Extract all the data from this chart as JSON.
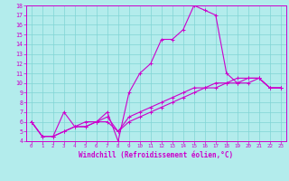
{
  "title": "",
  "xlabel": "Windchill (Refroidissement éolien,°C)",
  "ylabel": "",
  "xlim": [
    -0.5,
    23.5
  ],
  "ylim": [
    4,
    18
  ],
  "xticks": [
    0,
    1,
    2,
    3,
    4,
    5,
    6,
    7,
    8,
    9,
    10,
    11,
    12,
    13,
    14,
    15,
    16,
    17,
    18,
    19,
    20,
    21,
    22,
    23
  ],
  "yticks": [
    4,
    5,
    6,
    7,
    8,
    9,
    10,
    11,
    12,
    13,
    14,
    15,
    16,
    17,
    18
  ],
  "bg_color": "#b3ecec",
  "grid_color": "#80d5d5",
  "line_color": "#cc00cc",
  "series": [
    [
      6.0,
      4.5,
      4.5,
      7.0,
      5.5,
      6.0,
      6.0,
      7.0,
      4.0,
      9.0,
      11.0,
      12.0,
      14.5,
      14.5,
      15.5,
      18.0,
      17.5,
      17.0,
      11.0,
      10.0,
      10.5,
      10.5,
      9.5,
      9.5
    ],
    [
      6.0,
      4.5,
      4.5,
      5.0,
      5.5,
      5.5,
      6.0,
      6.0,
      5.0,
      6.0,
      6.5,
      7.0,
      7.5,
      8.0,
      8.5,
      9.0,
      9.5,
      9.5,
      10.0,
      10.0,
      10.0,
      10.5,
      9.5,
      9.5
    ],
    [
      6.0,
      4.5,
      4.5,
      5.0,
      5.5,
      5.5,
      6.0,
      6.5,
      5.0,
      6.5,
      7.0,
      7.5,
      8.0,
      8.5,
      9.0,
      9.5,
      9.5,
      10.0,
      10.0,
      10.5,
      10.5,
      10.5,
      9.5,
      9.5
    ]
  ]
}
